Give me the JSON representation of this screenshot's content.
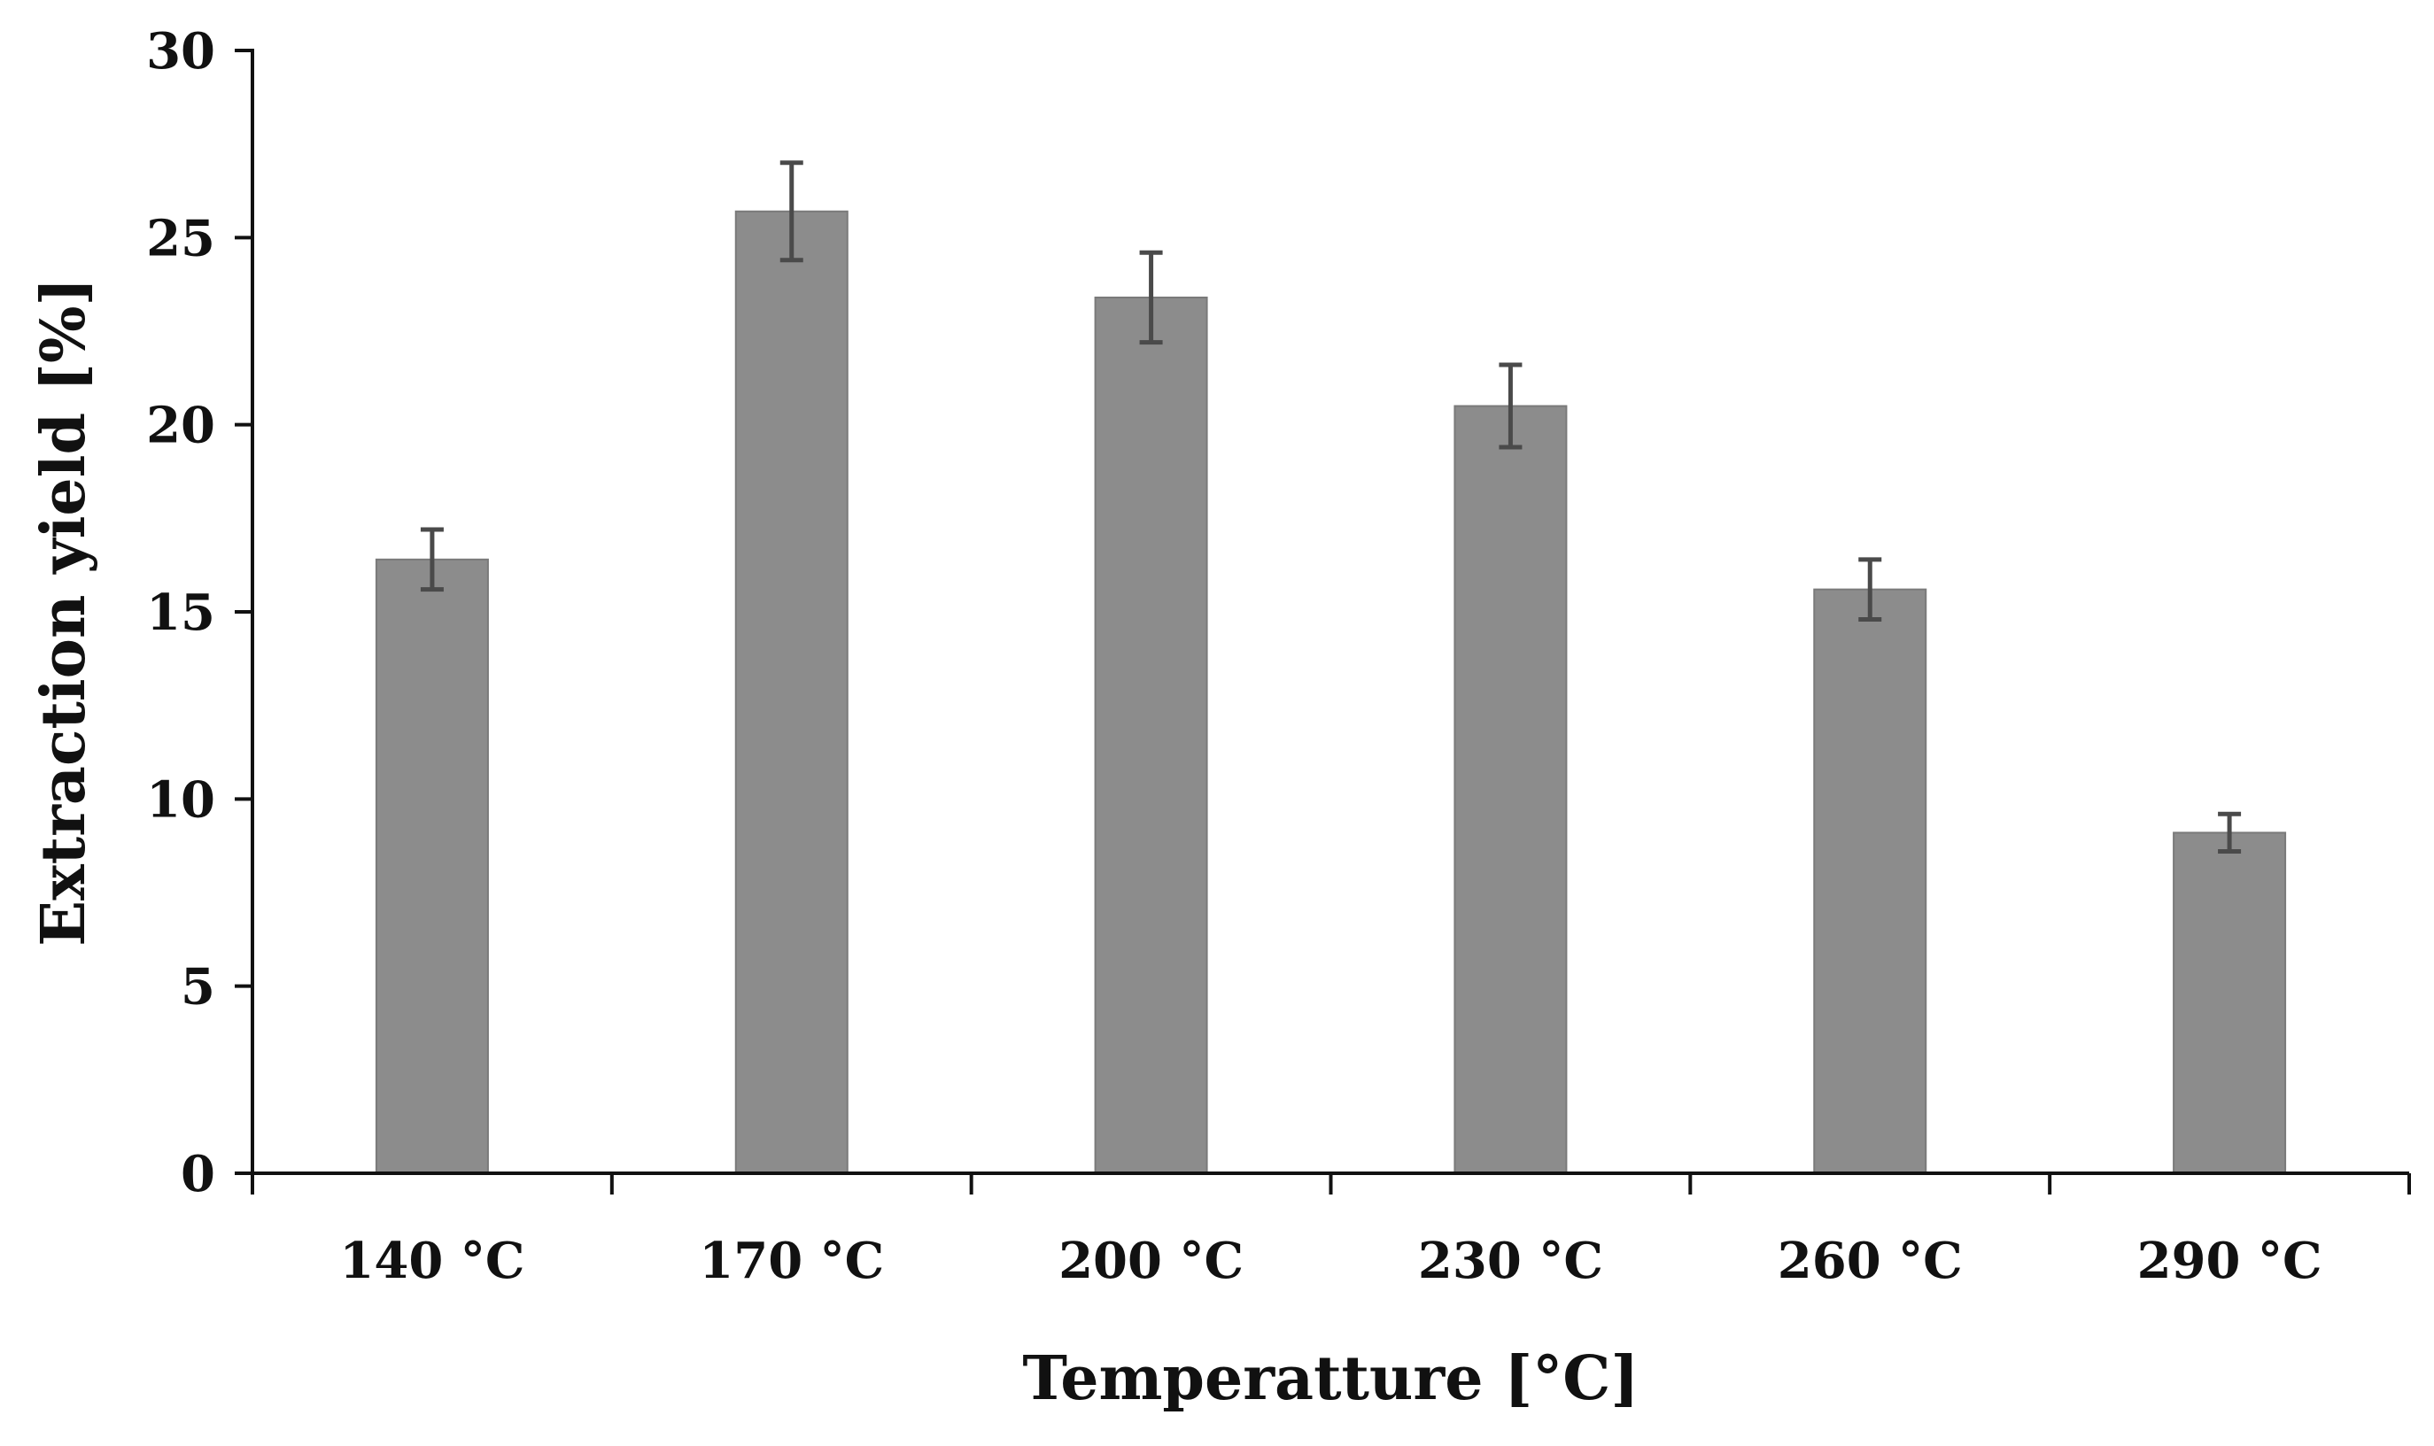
{
  "chart_data": {
    "type": "bar",
    "title": "",
    "xlabel": "Temperatture [°C]",
    "ylabel": "Extraction yield [%]",
    "categories": [
      "140 °C",
      "170 °C",
      "200 °C",
      "230 °C",
      "260 °C",
      "290 °C"
    ],
    "values": [
      16.4,
      25.7,
      23.4,
      20.5,
      15.6,
      9.1
    ],
    "errors": [
      0.8,
      1.3,
      1.2,
      1.1,
      0.8,
      0.5
    ],
    "ylim": [
      0,
      30
    ],
    "yticks": [
      0,
      5,
      10,
      15,
      20,
      25,
      30
    ],
    "grid": false,
    "legend": "none",
    "colors": {
      "bar": "#8c8c8c",
      "bar_edge": "#7a7a7a",
      "error_bar": "#4a4a4a",
      "axis": "#111111"
    }
  }
}
